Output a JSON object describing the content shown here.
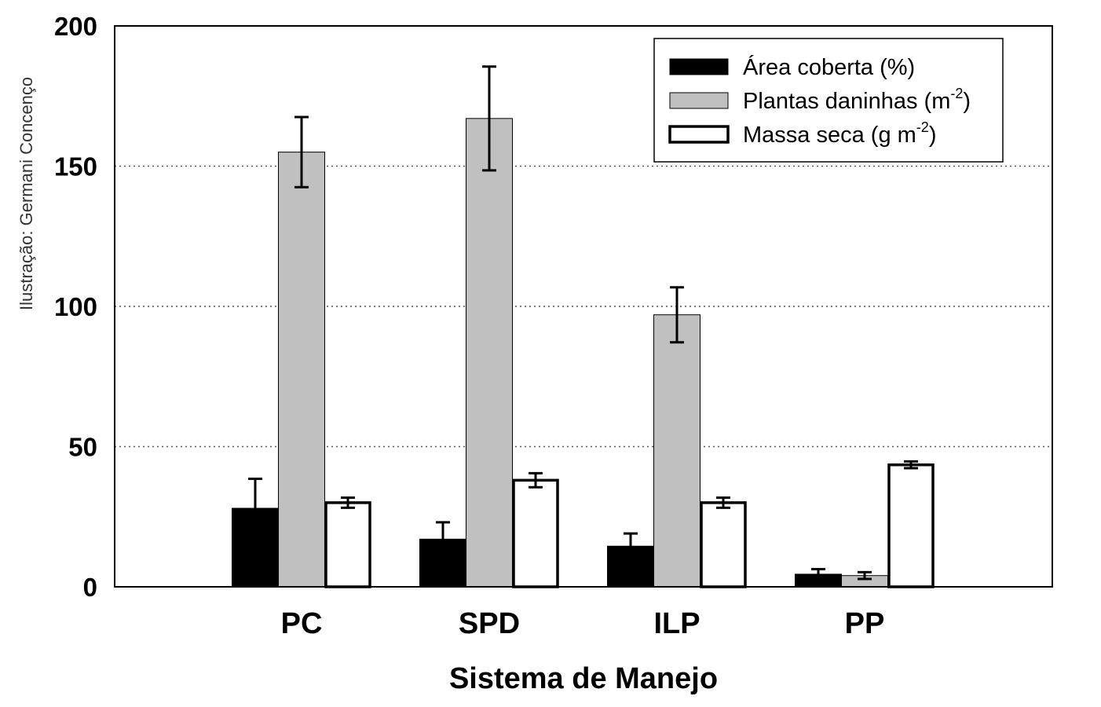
{
  "credit": "Ilustração: Germani Concenço",
  "chart_data": {
    "type": "bar",
    "xlabel": "Sistema de Manejo",
    "ylabel": "",
    "ylim": [
      0,
      200
    ],
    "yticks": [
      0,
      50,
      100,
      150,
      200
    ],
    "ytick_labels": [
      "0",
      "50",
      "100",
      "150",
      "200"
    ],
    "grid": "horizontal dotted at 50, 100, 150",
    "legend_position": "top-right",
    "categories": [
      "PC",
      "SPD",
      "ILP",
      "PP"
    ],
    "series": [
      {
        "name": "Área coberta (%)",
        "color": "#000000",
        "legend": {
          "base": "Área coberta (%)",
          "sup": "",
          "tail": ""
        },
        "values": [
          28,
          17,
          14.5,
          4.5
        ],
        "errors": [
          10.5,
          6,
          4.5,
          1.8
        ]
      },
      {
        "name": "Plantas daninhas (m-2)",
        "color": "#c0c0c0",
        "legend": {
          "base": "Plantas daninhas (m",
          "sup": "-2",
          "tail": ")"
        },
        "values": [
          155,
          167,
          97,
          4
        ],
        "errors": [
          12.5,
          18.5,
          9.8,
          1.2
        ]
      },
      {
        "name": "Massa seca (g m-2)",
        "color": "#ffffff",
        "legend": {
          "base": "Massa seca (g m",
          "sup": "-2",
          "tail": ")"
        },
        "values": [
          30,
          38,
          30,
          43.5
        ],
        "errors": [
          1.8,
          2.5,
          1.8,
          1.2
        ]
      }
    ]
  }
}
